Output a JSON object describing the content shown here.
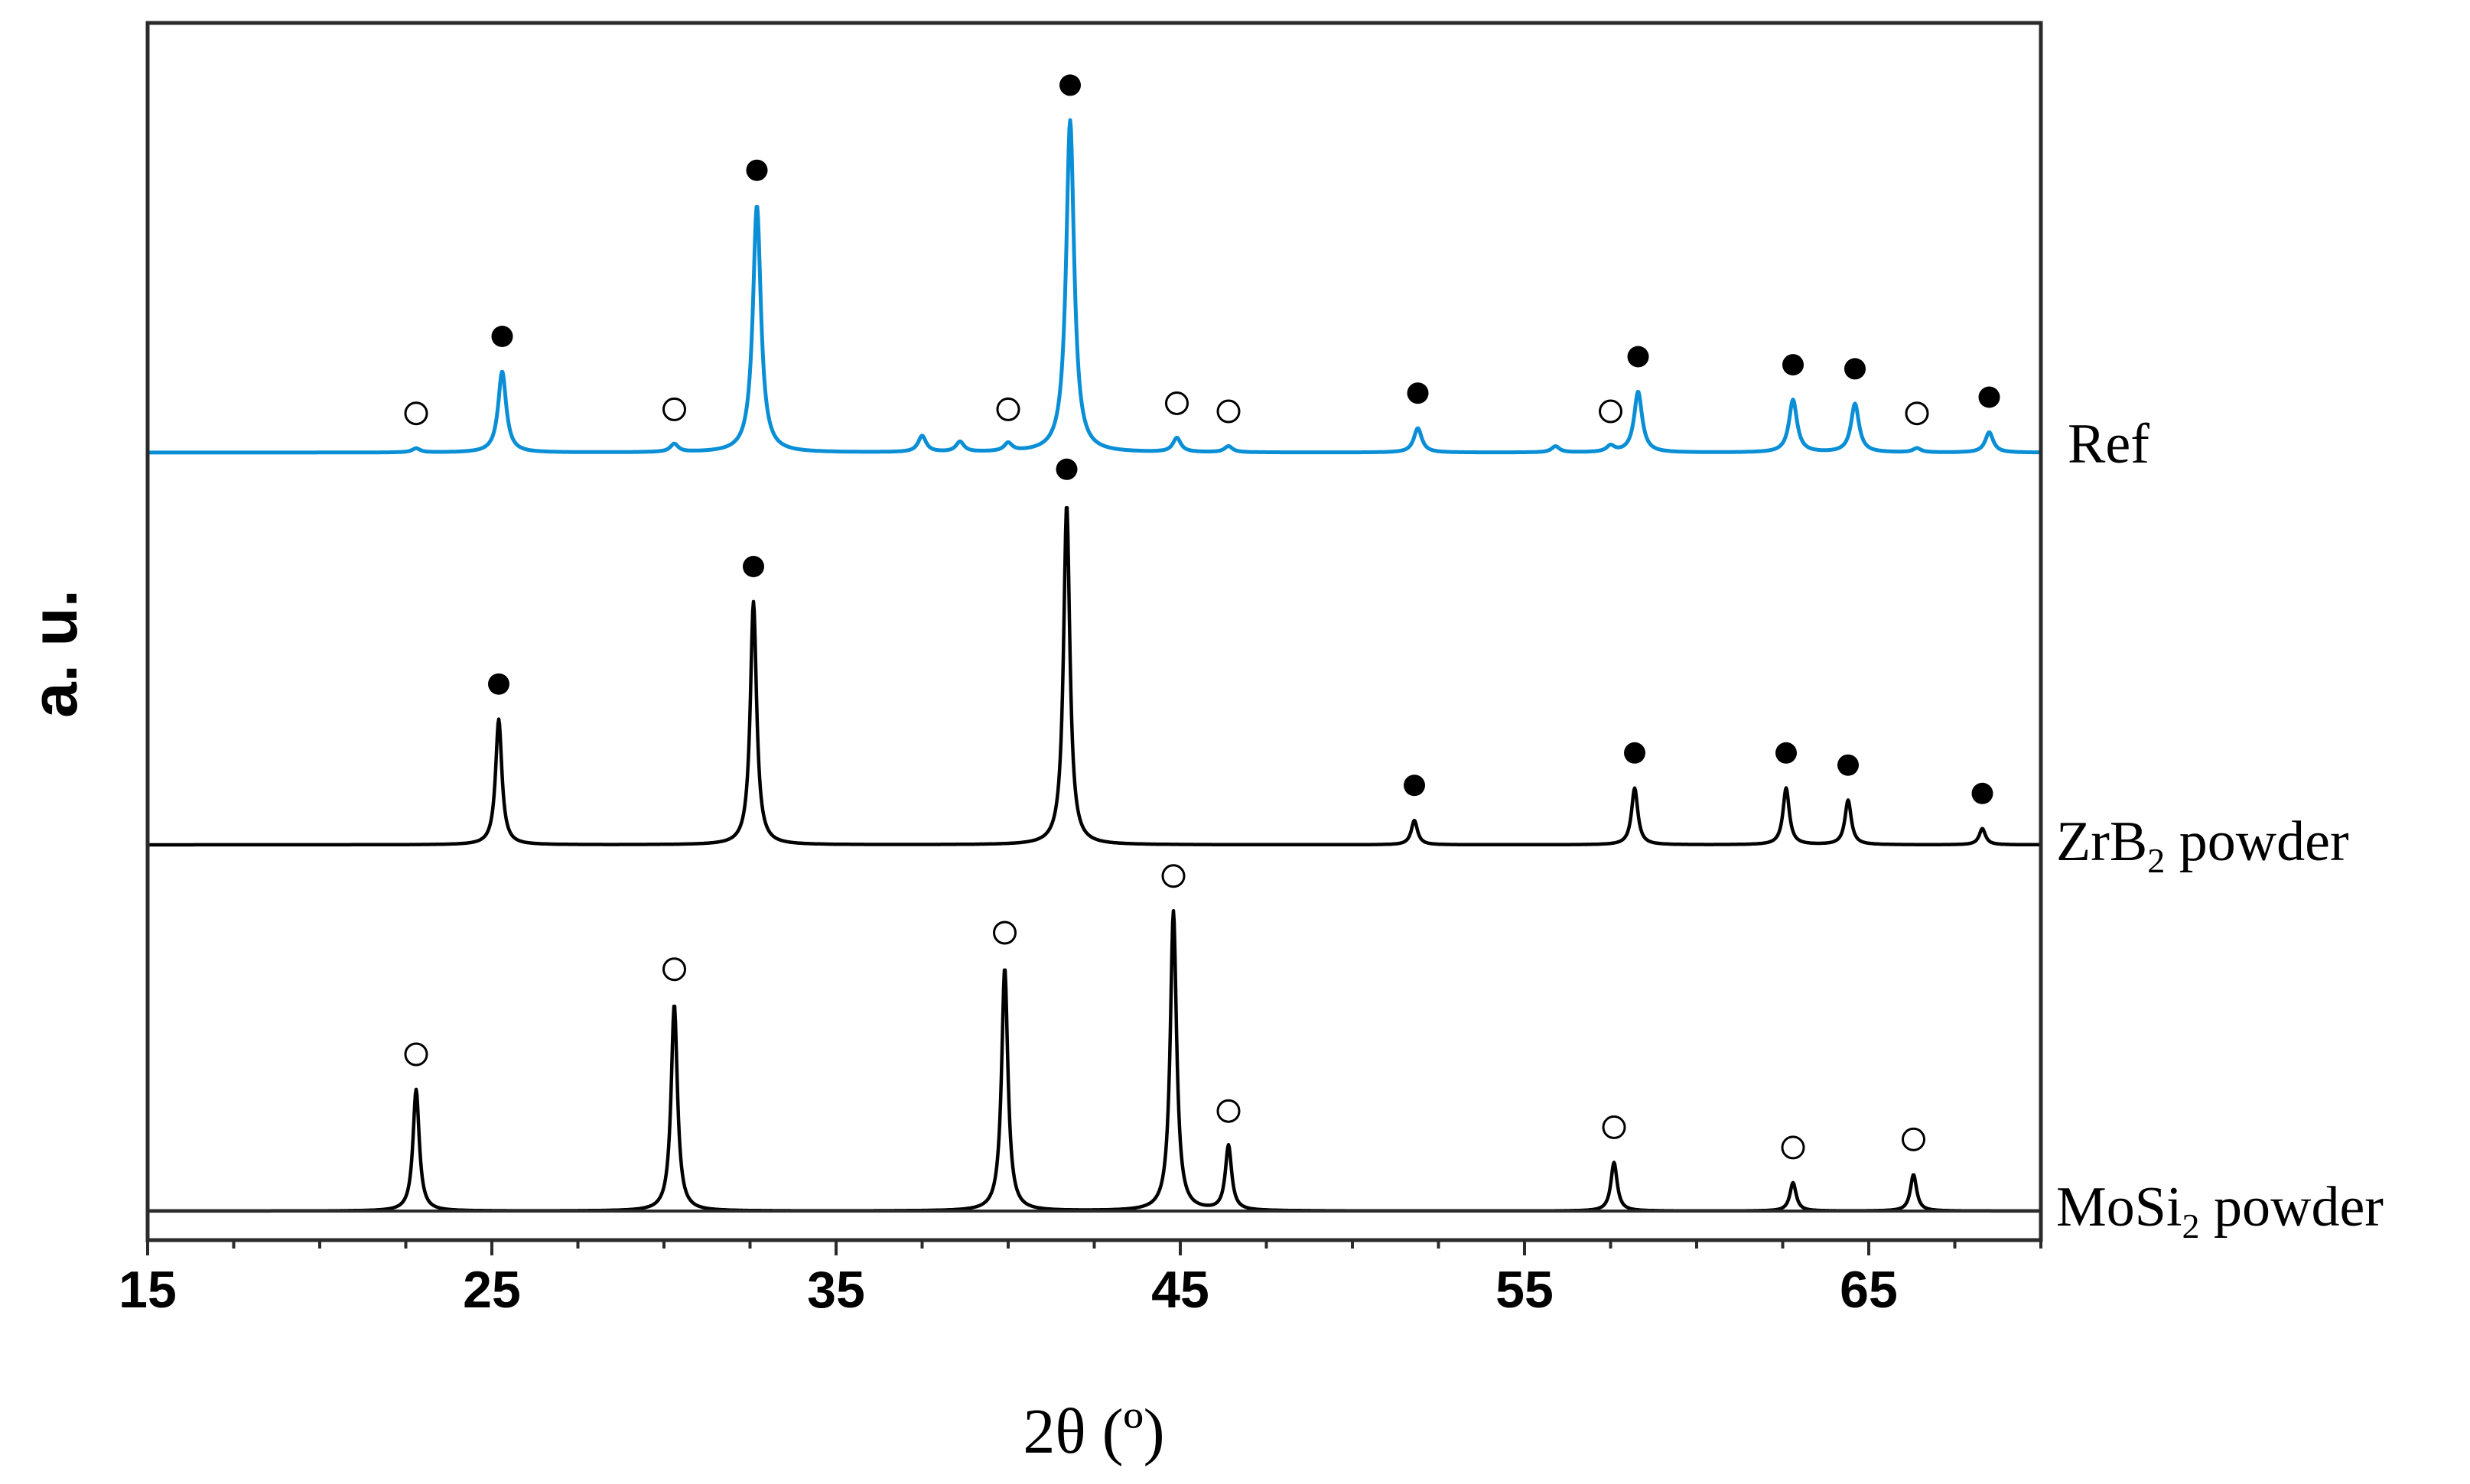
{
  "chart_data": {
    "type": "line",
    "xlabel": "2θ (º)",
    "ylabel": "a. u.",
    "xlim": [
      15,
      70
    ],
    "x_ticks": [
      "15",
      "25",
      "35",
      "45",
      "55",
      "65"
    ],
    "x_minor_step": 2.5,
    "grid": false,
    "series": [
      {
        "name": "Ref",
        "label_main": "Ref",
        "label_sub": "",
        "label_rest": "",
        "color": "#0a8fd6",
        "peaks": [
          {
            "x": 22.8,
            "h": 0.01,
            "phase": "MoSi2"
          },
          {
            "x": 25.3,
            "h": 0.2,
            "phase": "ZrB2"
          },
          {
            "x": 30.3,
            "h": 0.02,
            "phase": "MoSi2"
          },
          {
            "x": 32.7,
            "h": 0.61,
            "phase": "ZrB2"
          },
          {
            "x": 37.5,
            "h": 0.04,
            "phase": ""
          },
          {
            "x": 38.6,
            "h": 0.025,
            "phase": ""
          },
          {
            "x": 40.0,
            "h": 0.02,
            "phase": "MoSi2"
          },
          {
            "x": 41.8,
            "h": 0.82,
            "phase": "ZrB2"
          },
          {
            "x": 44.9,
            "h": 0.035,
            "phase": "MoSi2"
          },
          {
            "x": 46.4,
            "h": 0.015,
            "phase": "MoSi2"
          },
          {
            "x": 51.9,
            "h": 0.06,
            "phase": "ZrB2"
          },
          {
            "x": 55.9,
            "h": 0.015,
            "phase": ""
          },
          {
            "x": 57.5,
            "h": 0.015,
            "phase": "MoSi2"
          },
          {
            "x": 58.3,
            "h": 0.15,
            "phase": "ZrB2"
          },
          {
            "x": 62.8,
            "h": 0.13,
            "phase": "ZrB2"
          },
          {
            "x": 64.6,
            "h": 0.12,
            "phase": "ZrB2"
          },
          {
            "x": 66.4,
            "h": 0.01,
            "phase": "MoSi2"
          },
          {
            "x": 68.5,
            "h": 0.05,
            "phase": "ZrB2"
          }
        ]
      },
      {
        "name": "ZrB2 powder",
        "label_main": "ZrB",
        "label_sub": "2",
        "label_rest": " powder",
        "color": "#000000",
        "peaks": [
          {
            "x": 25.2,
            "h": 0.31,
            "phase": "ZrB2"
          },
          {
            "x": 32.6,
            "h": 0.6,
            "phase": "ZrB2"
          },
          {
            "x": 41.7,
            "h": 0.84,
            "phase": "ZrB2"
          },
          {
            "x": 51.8,
            "h": 0.06,
            "phase": "ZrB2"
          },
          {
            "x": 58.2,
            "h": 0.14,
            "phase": "ZrB2"
          },
          {
            "x": 62.6,
            "h": 0.14,
            "phase": "ZrB2"
          },
          {
            "x": 64.4,
            "h": 0.11,
            "phase": "ZrB2"
          },
          {
            "x": 68.3,
            "h": 0.04,
            "phase": "ZrB2"
          }
        ]
      },
      {
        "name": "MoSi2 powder",
        "label_main": "MoSi",
        "label_sub": "2",
        "label_rest": " powder",
        "color": "#000000",
        "peaks": [
          {
            "x": 22.8,
            "h": 0.3,
            "phase": "MoSi2"
          },
          {
            "x": 30.3,
            "h": 0.51,
            "phase": "MoSi2"
          },
          {
            "x": 39.9,
            "h": 0.6,
            "phase": "MoSi2"
          },
          {
            "x": 44.8,
            "h": 0.74,
            "phase": "MoSi2"
          },
          {
            "x": 46.4,
            "h": 0.16,
            "phase": "MoSi2"
          },
          {
            "x": 57.6,
            "h": 0.12,
            "phase": "MoSi2"
          },
          {
            "x": 62.8,
            "h": 0.07,
            "phase": "MoSi2"
          },
          {
            "x": 66.3,
            "h": 0.09,
            "phase": "MoSi2"
          }
        ]
      }
    ],
    "markers": {
      "ZrB2": "filled-circle",
      "MoSi2": "open-circle"
    }
  }
}
